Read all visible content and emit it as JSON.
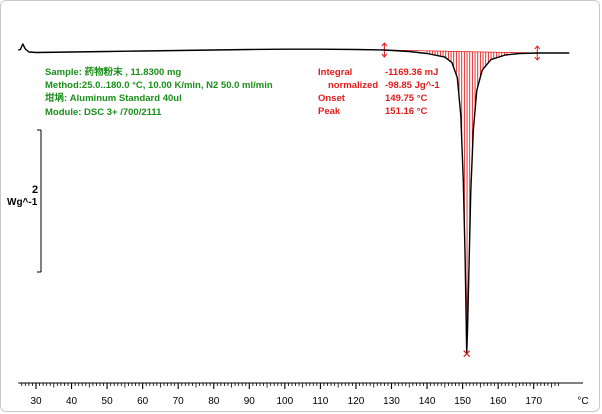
{
  "method_info": {
    "sample": "Sample:      药物粉末       , 11.8300 mg",
    "method": "Method:25.0..180.0 °C, 10.00 K/min, N2 50.0 ml/min",
    "crucible": "坩埚: Aluminum Standard 40ul",
    "module": "Module: DSC 3+ /700/2111"
  },
  "integration": {
    "integral_label": "Integral",
    "integral_value": "-1169.36 mJ",
    "normalized_label": "normalized",
    "normalized_value": "-98.85 Jg^-1",
    "onset_label": "Onset",
    "onset_value": "149.75 °C",
    "peak_label": "Peak",
    "peak_value": "151.16 °C"
  },
  "chart_data": {
    "type": "line",
    "x_unit": "°C",
    "xlim": [
      25,
      180
    ],
    "x_ticks": [
      30,
      40,
      50,
      60,
      70,
      80,
      90,
      100,
      110,
      120,
      130,
      140,
      150,
      160,
      170
    ],
    "y_scale_label": "Wg^-1",
    "y_scale_value": "2",
    "y_scale_bar_wg": 2,
    "integration_limits": [
      128,
      171
    ],
    "peak_marker": {
      "x": 151.16,
      "y": -12.05
    },
    "series": [
      {
        "x": [
          25,
          25.6,
          26.3,
          27.0,
          28,
          30,
          40,
          50,
          60,
          70,
          80,
          90,
          100,
          110,
          120,
          128,
          135,
          140,
          145,
          147,
          148.5,
          149.5,
          150.2,
          150.7,
          151.0,
          151.16,
          151.4,
          151.8,
          152.3,
          153,
          154,
          155.5,
          158,
          162,
          166,
          171,
          175,
          180
        ],
        "y": [
          0,
          0.02,
          0.24,
          0.04,
          -0.08,
          -0.1,
          -0.08,
          -0.06,
          -0.04,
          -0.02,
          0.0,
          0.02,
          0.03,
          0.03,
          0.02,
          0.0,
          -0.06,
          -0.14,
          -0.28,
          -0.5,
          -1.1,
          -2.6,
          -5.2,
          -8.2,
          -10.8,
          -12.05,
          -11.0,
          -8.6,
          -5.6,
          -3.2,
          -1.6,
          -0.8,
          -0.38,
          -0.2,
          -0.14,
          -0.12,
          -0.12,
          -0.12
        ]
      }
    ]
  }
}
